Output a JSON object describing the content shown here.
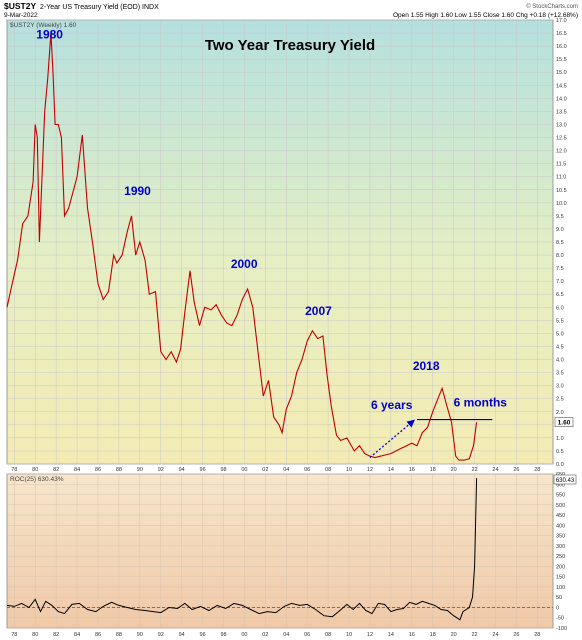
{
  "header": {
    "symbol": "$UST2Y",
    "description": "2-Year US Treasury Yield (EOD)  INDX",
    "date": "9-Mar-2022",
    "quote": "Open 1.55  High 1.60  Low 1.55  Close 1.60  Chg +0.18 (+12.68%)",
    "credit": "© StockCharts.com"
  },
  "chart_data": [
    {
      "type": "line",
      "title": "Two Year Treasury Yield",
      "legend": "$UST2Y (Weekly) 1.60",
      "last_value_label": "1.60",
      "x_ticks": [
        "78",
        "80",
        "82",
        "84",
        "86",
        "88",
        "90",
        "92",
        "94",
        "96",
        "98",
        "00",
        "02",
        "04",
        "06",
        "08",
        "10",
        "12",
        "14",
        "16",
        "18",
        "20",
        "22",
        "24",
        "26",
        "28"
      ],
      "y_ticks": [
        "0.0",
        "0.5",
        "1.0",
        "1.5",
        "2.0",
        "2.5",
        "3.0",
        "3.5",
        "4.0",
        "4.5",
        "5.0",
        "5.5",
        "6.0",
        "6.5",
        "7.0",
        "7.5",
        "8.0",
        "8.5",
        "9.0",
        "9.5",
        "10.0",
        "10.5",
        "11.0",
        "11.5",
        "12.0",
        "12.5",
        "13.0",
        "13.5",
        "14.0",
        "14.5",
        "15.0",
        "15.5",
        "16.0",
        "16.5",
        "17.0"
      ],
      "ylim": [
        0,
        17
      ],
      "xlim": [
        1977.3,
        2029.5
      ],
      "grid": true,
      "series": [
        {
          "color": "#c00000",
          "x": [
            1977.3,
            1977.8,
            1978.3,
            1978.8,
            1979.3,
            1979.8,
            1980.0,
            1980.2,
            1980.4,
            1980.6,
            1980.9,
            1981.2,
            1981.5,
            1981.7,
            1981.9,
            1982.2,
            1982.5,
            1982.8,
            1983.2,
            1983.6,
            1984.0,
            1984.5,
            1985.0,
            1985.5,
            1986.0,
            1986.5,
            1987.0,
            1987.5,
            1987.8,
            1988.3,
            1988.8,
            1989.2,
            1989.6,
            1990.0,
            1990.5,
            1990.9,
            1991.5,
            1992.0,
            1992.5,
            1993.0,
            1993.5,
            1993.9,
            1994.3,
            1994.8,
            1995.2,
            1995.7,
            1996.2,
            1996.8,
            1997.3,
            1997.8,
            1998.3,
            1998.8,
            1999.3,
            1999.8,
            2000.3,
            2000.8,
            2001.3,
            2001.8,
            2002.3,
            2002.8,
            2003.3,
            2003.6,
            2004.0,
            2004.5,
            2005.0,
            2005.5,
            2006.0,
            2006.5,
            2007.0,
            2007.5,
            2007.9,
            2008.3,
            2008.8,
            2009.2,
            2009.8,
            2010.5,
            2011.0,
            2011.5,
            2012.0,
            2012.5,
            2013.0,
            2013.5,
            2014.0,
            2014.5,
            2015.0,
            2015.5,
            2016.0,
            2016.5,
            2017.0,
            2017.5,
            2018.0,
            2018.5,
            2018.9,
            2019.3,
            2019.8,
            2020.2,
            2020.5,
            2021.0,
            2021.5,
            2021.9,
            2022.2
          ],
          "values": [
            6.0,
            6.9,
            7.8,
            9.2,
            9.5,
            10.8,
            13.0,
            12.5,
            8.5,
            10.5,
            13.5,
            14.8,
            16.5,
            15.0,
            13.0,
            13.0,
            12.5,
            9.5,
            9.8,
            10.4,
            11.0,
            12.6,
            9.8,
            8.4,
            6.9,
            6.3,
            6.6,
            8.0,
            7.7,
            8.0,
            8.9,
            9.5,
            8.0,
            8.5,
            7.8,
            6.5,
            6.6,
            4.3,
            4.0,
            4.3,
            3.9,
            4.4,
            5.8,
            7.4,
            6.2,
            5.3,
            6.0,
            5.9,
            6.1,
            5.7,
            5.4,
            5.3,
            5.7,
            6.3,
            6.7,
            6.0,
            4.3,
            2.6,
            3.2,
            1.8,
            1.5,
            1.2,
            2.1,
            2.6,
            3.5,
            4.0,
            4.7,
            5.1,
            4.8,
            4.9,
            3.4,
            2.2,
            1.1,
            0.9,
            1.0,
            0.5,
            0.7,
            0.4,
            0.3,
            0.25,
            0.3,
            0.35,
            0.4,
            0.5,
            0.6,
            0.7,
            0.8,
            0.7,
            1.2,
            1.4,
            2.0,
            2.5,
            2.9,
            2.3,
            1.6,
            0.3,
            0.15,
            0.15,
            0.2,
            0.7,
            1.6
          ]
        }
      ],
      "annotations": [
        {
          "text": "1980",
          "x": 1980.1,
          "y": 16.3
        },
        {
          "text": "1990",
          "x": 1988.5,
          "y": 10.3
        },
        {
          "text": "2000",
          "x": 1998.7,
          "y": 7.5
        },
        {
          "text": "2007",
          "x": 2005.8,
          "y": 5.7
        },
        {
          "text": "2018",
          "x": 2016.1,
          "y": 3.6
        },
        {
          "text": "6 years",
          "x": 2012.1,
          "y": 2.1
        },
        {
          "text": "6 months",
          "x": 2020.0,
          "y": 2.2
        }
      ],
      "horizontal_line": {
        "y": 1.7,
        "x_start": 2016.5,
        "x_end": 2023.7,
        "color": "#000080"
      },
      "dotted_arrow": {
        "x1": 2012.0,
        "y1": 0.25,
        "x2": 2016.3,
        "y2": 1.7,
        "color": "#0000cc"
      }
    },
    {
      "type": "line",
      "legend": "ROC(25) 630.43%",
      "last_value_label": "630.43",
      "x_ticks": [
        "78",
        "80",
        "82",
        "84",
        "86",
        "88",
        "90",
        "92",
        "94",
        "96",
        "98",
        "00",
        "02",
        "04",
        "06",
        "08",
        "10",
        "12",
        "14",
        "16",
        "18",
        "20",
        "22",
        "24",
        "26",
        "28"
      ],
      "y_ticks": [
        "-100",
        "-50",
        "0",
        "50",
        "100",
        "150",
        "200",
        "250",
        "300",
        "350",
        "400",
        "450",
        "500",
        "550",
        "600",
        "650"
      ],
      "ylim": [
        -100,
        650
      ],
      "xlim": [
        1977.3,
        2029.5
      ],
      "zero_line": true,
      "series": [
        {
          "color": "#000000",
          "x": [
            1977.3,
            1978.0,
            1978.7,
            1979.4,
            1980.0,
            1980.5,
            1981.0,
            1981.6,
            1982.2,
            1982.8,
            1983.5,
            1984.2,
            1985.0,
            1985.8,
            1986.5,
            1987.3,
            1988.0,
            1988.8,
            1989.6,
            1990.5,
            1991.3,
            1992.0,
            1992.8,
            1993.6,
            1994.3,
            1995.0,
            1995.8,
            1996.6,
            1997.4,
            1998.2,
            1999.0,
            1999.8,
            2000.6,
            2001.4,
            2002.2,
            2003.0,
            2003.8,
            2004.5,
            2005.3,
            2006.0,
            2006.8,
            2007.6,
            2008.4,
            2009.0,
            2009.8,
            2010.4,
            2011.0,
            2011.6,
            2012.2,
            2012.8,
            2013.4,
            2014.0,
            2014.6,
            2015.2,
            2015.8,
            2016.4,
            2017.0,
            2017.6,
            2018.2,
            2018.8,
            2019.4,
            2020.0,
            2020.3,
            2020.6,
            2020.9,
            2021.2,
            2021.5,
            2021.8,
            2022.0,
            2022.2
          ],
          "values": [
            10,
            5,
            20,
            0,
            40,
            -20,
            30,
            10,
            -20,
            -30,
            15,
            20,
            -10,
            -20,
            5,
            25,
            10,
            0,
            -10,
            -15,
            -20,
            -25,
            0,
            -5,
            20,
            -10,
            5,
            -15,
            10,
            -5,
            20,
            10,
            -10,
            -30,
            -20,
            -25,
            5,
            20,
            10,
            15,
            -10,
            -40,
            -45,
            -20,
            15,
            -10,
            20,
            -15,
            -30,
            20,
            15,
            -20,
            -10,
            -5,
            25,
            15,
            30,
            20,
            10,
            -10,
            -15,
            -40,
            -50,
            -60,
            -20,
            -10,
            0,
            50,
            200,
            630
          ]
        }
      ]
    }
  ]
}
